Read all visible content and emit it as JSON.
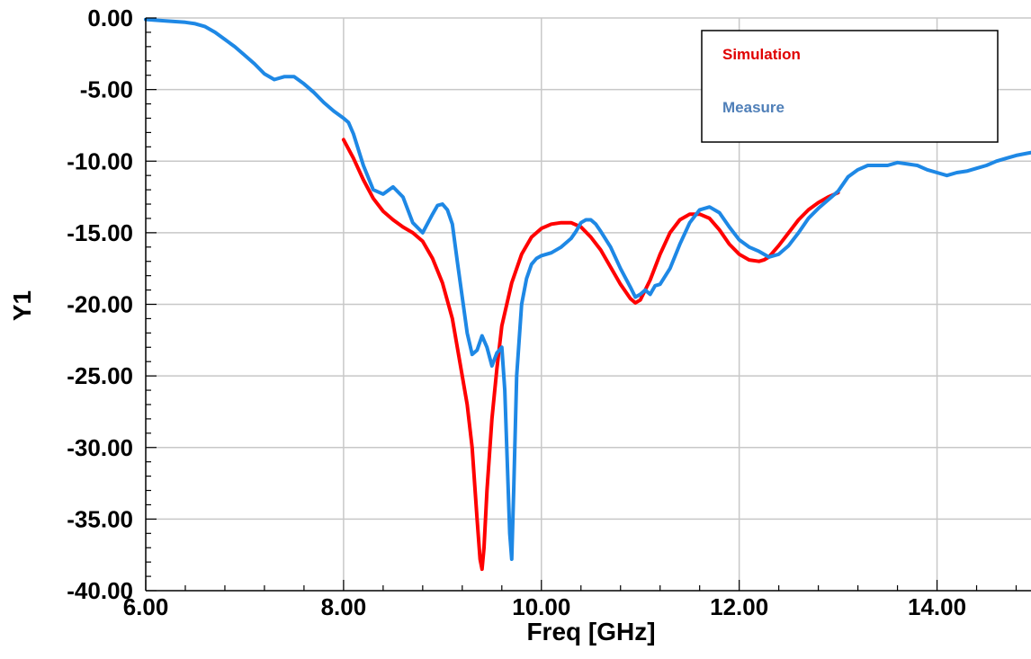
{
  "chart_data": {
    "type": "line",
    "xlabel": "Freq [GHz]",
    "ylabel": "Y1",
    "xlim": [
      6.0,
      14.95
    ],
    "ylim": [
      -40.0,
      0.0
    ],
    "x_ticks": [
      6.0,
      8.0,
      10.0,
      12.0,
      14.0
    ],
    "x_tick_labels": [
      "6.00",
      "8.00",
      "10.00",
      "12.00",
      "14.00"
    ],
    "y_ticks": [
      0,
      -5,
      -10,
      -15,
      -20,
      -25,
      -30,
      -35,
      -40
    ],
    "y_tick_labels": [
      "0.00",
      "-5.00",
      "-10.00",
      "-15.00",
      "-20.00",
      "-25.00",
      "-30.00",
      "-35.00",
      "-40.00"
    ],
    "grid": true,
    "legend_position": "top-right",
    "series": [
      {
        "name": "Simulation",
        "color": "#ff0000",
        "x": [
          8.0,
          8.1,
          8.2,
          8.3,
          8.4,
          8.5,
          8.6,
          8.7,
          8.8,
          8.9,
          9.0,
          9.1,
          9.2,
          9.25,
          9.3,
          9.35,
          9.38,
          9.4,
          9.42,
          9.45,
          9.5,
          9.55,
          9.6,
          9.7,
          9.8,
          9.9,
          10.0,
          10.1,
          10.2,
          10.3,
          10.4,
          10.5,
          10.6,
          10.7,
          10.8,
          10.9,
          10.95,
          11.0,
          11.1,
          11.2,
          11.3,
          11.4,
          11.5,
          11.6,
          11.7,
          11.8,
          11.9,
          12.0,
          12.1,
          12.2,
          12.25,
          12.3,
          12.4,
          12.5,
          12.6,
          12.7,
          12.8,
          12.9,
          13.0
        ],
        "values": [
          -8.5,
          -9.8,
          -11.3,
          -12.6,
          -13.5,
          -14.1,
          -14.6,
          -15.0,
          -15.6,
          -16.8,
          -18.5,
          -21.0,
          -25.0,
          -27.0,
          -30.0,
          -35.0,
          -37.8,
          -38.5,
          -37.0,
          -33.0,
          -28.0,
          -24.5,
          -21.5,
          -18.5,
          -16.5,
          -15.3,
          -14.7,
          -14.4,
          -14.3,
          -14.3,
          -14.6,
          -15.3,
          -16.2,
          -17.4,
          -18.6,
          -19.6,
          -19.9,
          -19.7,
          -18.3,
          -16.5,
          -15.0,
          -14.1,
          -13.7,
          -13.7,
          -14.0,
          -14.8,
          -15.8,
          -16.5,
          -16.9,
          -17.0,
          -16.9,
          -16.7,
          -15.9,
          -15.0,
          -14.1,
          -13.4,
          -12.9,
          -12.5,
          -12.2
        ]
      },
      {
        "name": "Measure",
        "color": "#1e88e5",
        "x": [
          6.0,
          6.2,
          6.4,
          6.5,
          6.6,
          6.7,
          6.8,
          6.9,
          7.0,
          7.1,
          7.2,
          7.3,
          7.4,
          7.5,
          7.6,
          7.7,
          7.8,
          7.9,
          8.0,
          8.05,
          8.1,
          8.15,
          8.2,
          8.3,
          8.4,
          8.5,
          8.6,
          8.7,
          8.8,
          8.9,
          8.95,
          9.0,
          9.05,
          9.1,
          9.15,
          9.2,
          9.25,
          9.3,
          9.35,
          9.4,
          9.45,
          9.5,
          9.55,
          9.6,
          9.63,
          9.65,
          9.68,
          9.7,
          9.72,
          9.75,
          9.8,
          9.85,
          9.9,
          9.95,
          10.0,
          10.1,
          10.2,
          10.3,
          10.35,
          10.4,
          10.45,
          10.5,
          10.55,
          10.6,
          10.7,
          10.8,
          10.9,
          10.95,
          11.0,
          11.05,
          11.1,
          11.15,
          11.2,
          11.3,
          11.4,
          11.5,
          11.6,
          11.7,
          11.8,
          11.9,
          12.0,
          12.1,
          12.2,
          12.3,
          12.4,
          12.5,
          12.6,
          12.7,
          12.8,
          12.9,
          13.0,
          13.1,
          13.2,
          13.3,
          13.4,
          13.5,
          13.6,
          13.7,
          13.8,
          13.9,
          14.0,
          14.1,
          14.2,
          14.3,
          14.4,
          14.5,
          14.6,
          14.7,
          14.8,
          14.95
        ],
        "values": [
          -0.1,
          -0.2,
          -0.3,
          -0.4,
          -0.6,
          -1.0,
          -1.5,
          -2.0,
          -2.6,
          -3.2,
          -3.9,
          -4.3,
          -4.1,
          -4.1,
          -4.6,
          -5.2,
          -5.9,
          -6.5,
          -7.0,
          -7.3,
          -8.1,
          -9.2,
          -10.3,
          -12.0,
          -12.3,
          -11.8,
          -12.5,
          -14.3,
          -15.0,
          -13.7,
          -13.1,
          -13.0,
          -13.4,
          -14.4,
          -17.0,
          -19.5,
          -22.0,
          -23.5,
          -23.2,
          -22.2,
          -23.0,
          -24.3,
          -23.4,
          -23.0,
          -26.0,
          -30.0,
          -36.0,
          -37.8,
          -33.0,
          -25.0,
          -20.0,
          -18.2,
          -17.2,
          -16.8,
          -16.6,
          -16.4,
          -16.0,
          -15.4,
          -14.9,
          -14.3,
          -14.1,
          -14.1,
          -14.4,
          -14.9,
          -16.0,
          -17.5,
          -18.8,
          -19.5,
          -19.3,
          -19.0,
          -19.3,
          -18.7,
          -18.6,
          -17.5,
          -15.8,
          -14.3,
          -13.4,
          -13.2,
          -13.6,
          -14.6,
          -15.5,
          -16.0,
          -16.3,
          -16.7,
          -16.5,
          -15.9,
          -15.0,
          -14.0,
          -13.3,
          -12.7,
          -12.1,
          -11.1,
          -10.6,
          -10.3,
          -10.3,
          -10.3,
          -10.1,
          -10.2,
          -10.3,
          -10.6,
          -10.8,
          -11.0,
          -10.8,
          -10.7,
          -10.5,
          -10.3,
          -10.0,
          -9.8,
          -9.6,
          -9.4
        ]
      }
    ]
  }
}
